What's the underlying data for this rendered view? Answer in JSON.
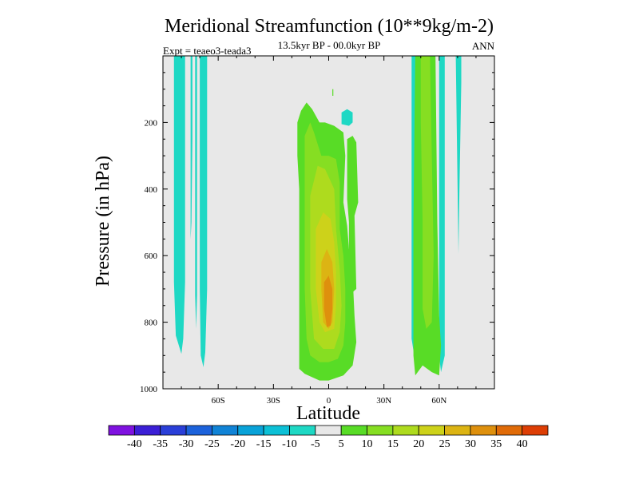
{
  "chart_data": {
    "type": "contour",
    "title": "Meridional Streamfunction (10**9kg/m-2)",
    "subtitle": "13.5kyr BP - 00.0kyr BP",
    "left_note": "Expt = teaeo3-teada3",
    "right_note": "ANN",
    "xlabel": "Latitude",
    "ylabel": "Pressure (in hPa)",
    "xlim": [
      -90,
      90
    ],
    "ylim": [
      1000,
      0
    ],
    "x_ticks": [
      {
        "v": -60,
        "label": "60S"
      },
      {
        "v": -30,
        "label": "30S"
      },
      {
        "v": 0,
        "label": "0"
      },
      {
        "v": 30,
        "label": "30N"
      },
      {
        "v": 60,
        "label": "60N"
      }
    ],
    "y_ticks": [
      {
        "v": 200,
        "label": "200"
      },
      {
        "v": 400,
        "label": "400"
      },
      {
        "v": 600,
        "label": "600"
      },
      {
        "v": 800,
        "label": "800"
      },
      {
        "v": 1000,
        "label": "1000"
      }
    ],
    "colorbar": {
      "levels": [
        "-40",
        "-35",
        "-30",
        "-25",
        "-20",
        "-15",
        "-10",
        "-5",
        "5",
        "10",
        "15",
        "20",
        "25",
        "30",
        "35",
        "40"
      ],
      "colors": [
        "#7f12e0",
        "#3b1fd6",
        "#2a3fd8",
        "#1c62db",
        "#1083d6",
        "#09a2d8",
        "#0cc0d6",
        "#1ed8c4",
        "#e8e8e8",
        "#58dc26",
        "#86de22",
        "#aedb1e",
        "#cdd21a",
        "#dcb413",
        "#de900d",
        "#e06b08",
        "#dd3e05"
      ]
    },
    "regions": [
      {
        "name": "cyan-sh-strip-1",
        "level": "-10 to -5",
        "color": "#1ed8c4",
        "outline": [
          [
            -84,
            0
          ],
          [
            -78,
            0
          ],
          [
            -78,
            680
          ],
          [
            -79,
            850
          ],
          [
            -80,
            895
          ],
          [
            -83,
            840
          ],
          [
            -84,
            680
          ]
        ]
      },
      {
        "name": "cyan-sh-strip-2",
        "level": "-10 to -5",
        "color": "#1ed8c4",
        "outline": [
          [
            -75,
            0
          ],
          [
            -74,
            0
          ],
          [
            -74,
            250
          ],
          [
            -74.5,
            500
          ],
          [
            -75,
            550
          ],
          [
            -75,
            250
          ]
        ]
      },
      {
        "name": "cyan-sh-strip-3",
        "level": "-10 to -5",
        "color": "#1ed8c4",
        "outline": [
          [
            -72.5,
            0
          ],
          [
            -71.5,
            0
          ],
          [
            -71.5,
            720
          ],
          [
            -72,
            820
          ],
          [
            -72.5,
            720
          ]
        ]
      },
      {
        "name": "cyan-sh-strip-4",
        "level": "-10 to -5",
        "color": "#1ed8c4",
        "outline": [
          [
            -70,
            0
          ],
          [
            -66,
            0
          ],
          [
            -66,
            700
          ],
          [
            -67,
            890
          ],
          [
            -68,
            935
          ],
          [
            -69.5,
            900
          ],
          [
            -70,
            700
          ]
        ]
      },
      {
        "name": "cyan-eq-blob",
        "level": "-10 to -5",
        "color": "#1ed8c4",
        "outline": [
          [
            7,
            205
          ],
          [
            11,
            210
          ],
          [
            13,
            200
          ],
          [
            13,
            170
          ],
          [
            10,
            160
          ],
          [
            7,
            170
          ]
        ]
      },
      {
        "name": "cyan-nh-strip-1",
        "level": "-10 to -5",
        "color": "#1ed8c4",
        "outline": [
          [
            45,
            0
          ],
          [
            48,
            0
          ],
          [
            48,
            850
          ],
          [
            47,
            920
          ],
          [
            45,
            850
          ]
        ]
      },
      {
        "name": "cyan-nh-strip-2",
        "level": "-10 to -5",
        "color": "#1ed8c4",
        "outline": [
          [
            60,
            0
          ],
          [
            63,
            0
          ],
          [
            63,
            900
          ],
          [
            61,
            950
          ],
          [
            60,
            900
          ]
        ]
      },
      {
        "name": "cyan-nh-strip-3",
        "level": "-10 to -5",
        "color": "#1ed8c4",
        "outline": [
          [
            69,
            0
          ],
          [
            72,
            0
          ],
          [
            72,
            80
          ],
          [
            71,
            400
          ],
          [
            70.5,
            595
          ],
          [
            70,
            400
          ]
        ]
      },
      {
        "name": "green-eq-main",
        "level": "5 to 10",
        "color": "#58dc26",
        "outline": [
          [
            -17,
            200
          ],
          [
            -15,
            165
          ],
          [
            -12,
            140
          ],
          [
            -9,
            160
          ],
          [
            -5,
            200
          ],
          [
            -2,
            200
          ],
          [
            3,
            210
          ],
          [
            8,
            230
          ],
          [
            9,
            300
          ],
          [
            8,
            440
          ],
          [
            10,
            510
          ],
          [
            11,
            580
          ],
          [
            13,
            660
          ],
          [
            14,
            780
          ],
          [
            15,
            860
          ],
          [
            13,
            930
          ],
          [
            8,
            960
          ],
          [
            0,
            975
          ],
          [
            -5,
            975
          ],
          [
            -13,
            955
          ],
          [
            -16,
            940
          ],
          [
            -16,
            400
          ],
          [
            -17,
            300
          ]
        ]
      },
      {
        "name": "green-eq-notch",
        "level": "5 to 10",
        "color": "#58dc26",
        "outline": [
          [
            10,
            250
          ],
          [
            13,
            240
          ],
          [
            15,
            260
          ],
          [
            16,
            440
          ],
          [
            14,
            480
          ],
          [
            15,
            700
          ],
          [
            11,
            720
          ],
          [
            11,
            500
          ],
          [
            10,
            430
          ]
        ]
      },
      {
        "name": "green-eq-top",
        "level": "5 to 10",
        "color": "#58dc26",
        "outline": [
          [
            2,
            100
          ],
          [
            2.5,
            100
          ],
          [
            2.5,
            120
          ],
          [
            2,
            120
          ]
        ]
      },
      {
        "name": "green-nh-main",
        "level": "5 to 10",
        "color": "#58dc26",
        "outline": [
          [
            47,
            0
          ],
          [
            58,
            0
          ],
          [
            59,
            500
          ],
          [
            60,
            780
          ],
          [
            61,
            870
          ],
          [
            60,
            960
          ],
          [
            56,
            950
          ],
          [
            51,
            930
          ],
          [
            47,
            960
          ],
          [
            46,
            900
          ],
          [
            46,
            500
          ]
        ]
      },
      {
        "name": "lime-eq",
        "level": "10 to 15",
        "color": "#86de22",
        "outline": [
          [
            -13,
            320
          ],
          [
            -13,
            240
          ],
          [
            -10,
            200
          ],
          [
            -8,
            230
          ],
          [
            -4,
            300
          ],
          [
            0,
            300
          ],
          [
            4,
            310
          ],
          [
            6,
            380
          ],
          [
            6,
            520
          ],
          [
            8,
            600
          ],
          [
            9,
            700
          ],
          [
            9,
            800
          ],
          [
            8,
            870
          ],
          [
            5,
            910
          ],
          [
            0,
            920
          ],
          [
            -5,
            920
          ],
          [
            -10,
            900
          ],
          [
            -12,
            850
          ],
          [
            -13,
            700
          ],
          [
            -13,
            450
          ]
        ]
      },
      {
        "name": "lime-nh",
        "level": "10 to 15",
        "color": "#86de22",
        "outline": [
          [
            50,
            0
          ],
          [
            55,
            0
          ],
          [
            56,
            300
          ],
          [
            57,
            600
          ],
          [
            56,
            800
          ],
          [
            53,
            820
          ],
          [
            51,
            760
          ],
          [
            51,
            500
          ],
          [
            50,
            200
          ]
        ]
      },
      {
        "name": "yellowgreen-eq",
        "level": "15 to 20",
        "color": "#aedb1e",
        "outline": [
          [
            -10,
            420
          ],
          [
            -6,
            330
          ],
          [
            -2,
            340
          ],
          [
            3,
            400
          ],
          [
            4,
            520
          ],
          [
            6,
            640
          ],
          [
            7,
            750
          ],
          [
            6,
            830
          ],
          [
            3,
            880
          ],
          [
            -3,
            880
          ],
          [
            -8,
            850
          ],
          [
            -10,
            700
          ],
          [
            -10,
            550
          ]
        ]
      },
      {
        "name": "yellow-eq",
        "level": "20 to 25",
        "color": "#cdd21a",
        "outline": [
          [
            -7,
            520
          ],
          [
            -3,
            470
          ],
          [
            1,
            490
          ],
          [
            3,
            560
          ],
          [
            4,
            650
          ],
          [
            4,
            750
          ],
          [
            3,
            820
          ],
          [
            -2,
            830
          ],
          [
            -5,
            800
          ],
          [
            -7,
            700
          ]
        ]
      },
      {
        "name": "gold-eq",
        "level": "25 to 30",
        "color": "#dcb413",
        "outline": [
          [
            -4,
            620
          ],
          [
            -1,
            580
          ],
          [
            2,
            620
          ],
          [
            3,
            700
          ],
          [
            2,
            800
          ],
          [
            0,
            820
          ],
          [
            -3,
            800
          ],
          [
            -4,
            700
          ]
        ]
      },
      {
        "name": "orange-eq",
        "level": "30 to 35",
        "color": "#de900d",
        "outline": [
          [
            -2.5,
            680
          ],
          [
            0,
            660
          ],
          [
            2,
            700
          ],
          [
            2,
            760
          ],
          [
            1,
            810
          ],
          [
            -1,
            815
          ],
          [
            -2.5,
            760
          ]
        ]
      }
    ]
  }
}
